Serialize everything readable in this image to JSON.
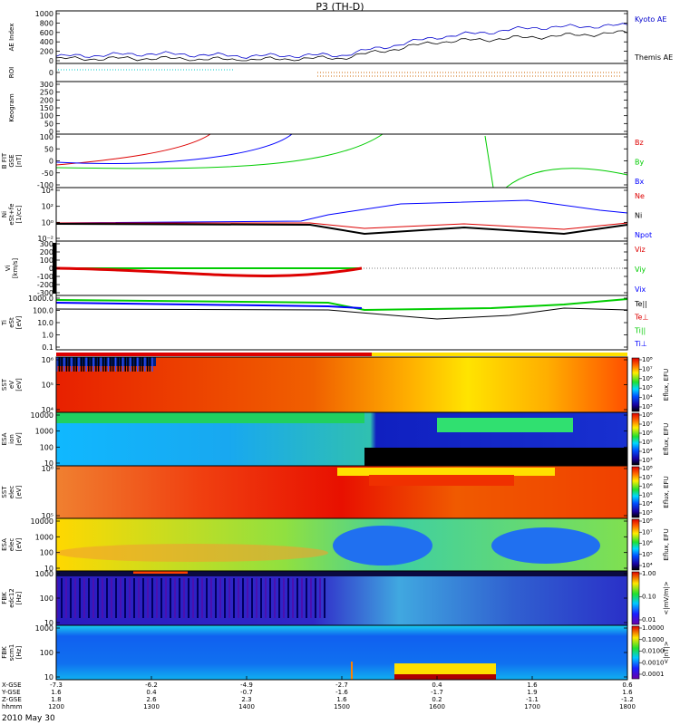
{
  "title": "P3 (TH-D)",
  "date_label": "2010 May 30",
  "colors": {
    "kyoto": "#0000cc",
    "themis": "#000000",
    "red": "#dd0000",
    "green": "#00cc00",
    "blue": "#0000ff",
    "black": "#000000",
    "roi_cyan": "#00cccc",
    "roi_orange": "#cc6600"
  },
  "x_axis": {
    "hhmm": [
      "1200",
      "1300",
      "1400",
      "1500",
      "1600",
      "1700",
      "1800"
    ],
    "rows": [
      {
        "label": "X-GSE",
        "values": [
          "-7.3",
          "-6.2",
          "-4.9",
          "-2.7",
          "0.4",
          "1.6",
          "0.6"
        ]
      },
      {
        "label": "Y-GSE",
        "values": [
          "1.6",
          "0.4",
          "-0.7",
          "-1.6",
          "-1.7",
          "1.9",
          "1.6"
        ]
      },
      {
        "label": "Z-GSE",
        "values": [
          "1.8",
          "2.6",
          "2.3",
          "1.6",
          "0.2",
          "-1.1",
          "-1.2"
        ]
      },
      {
        "label": "hhmm",
        "values": [
          "1200",
          "1300",
          "1400",
          "1500",
          "1600",
          "1700",
          "1800"
        ]
      }
    ]
  },
  "panels": [
    {
      "id": "ae",
      "ylabel": [
        "AE Index"
      ],
      "ticks": [
        "1000",
        "800",
        "600",
        "400",
        "200",
        "0"
      ],
      "legend": [
        {
          "text": "Kyoto AE",
          "color": "#0000cc"
        },
        {
          "text": "Themis AE",
          "color": "#000000"
        }
      ]
    },
    {
      "id": "roi",
      "ylabel": [
        "ROI"
      ],
      "ticks": [
        "0"
      ],
      "legend": []
    },
    {
      "id": "keogram",
      "ylabel": [
        "Keogram"
      ],
      "ticks": [
        "300",
        "250",
        "200",
        "150",
        "100",
        "50",
        "0"
      ],
      "legend": []
    },
    {
      "id": "bfit",
      "ylabel": [
        "B FIT",
        "GSE",
        "[nT]"
      ],
      "ticks": [
        "100",
        "50",
        "0",
        "-50",
        "-100"
      ],
      "legend": [
        {
          "text": "Bz",
          "color": "#dd0000"
        },
        {
          "text": "By",
          "color": "#00cc00"
        },
        {
          "text": "Bx",
          "color": "#0000ff"
        }
      ]
    },
    {
      "id": "ni",
      "ylabel": [
        "Ni",
        "eSt+fe",
        "[1/cc]"
      ],
      "ticks": [
        "10⁴",
        "10²",
        "10⁰",
        "10⁻²"
      ],
      "legend": [
        {
          "text": "Ne",
          "color": "#dd0000"
        },
        {
          "text": "Ni",
          "color": "#000000"
        },
        {
          "text": "Npot",
          "color": "#0000ff"
        }
      ]
    },
    {
      "id": "vi",
      "ylabel": [
        "Vi",
        "[km/s]"
      ],
      "ticks": [
        "300",
        "200",
        "100",
        "0",
        "-100",
        "-200",
        "-300"
      ],
      "legend": [
        {
          "text": "Viz",
          "color": "#dd0000"
        },
        {
          "text": "Viy",
          "color": "#00cc00"
        },
        {
          "text": "Vix",
          "color": "#0000ff"
        }
      ]
    },
    {
      "id": "ti",
      "ylabel": [
        "Ti",
        "eSt",
        "[eV]"
      ],
      "ticks": [
        "1000.0",
        "100.0",
        "10.0",
        "1.0",
        "0.1"
      ],
      "legend": [
        {
          "text": "Te||",
          "color": "#000000"
        },
        {
          "text": "Te⊥",
          "color": "#dd0000"
        },
        {
          "text": "Ti||",
          "color": "#00cc00"
        },
        {
          "text": "Ti⊥",
          "color": "#0000ff"
        }
      ]
    },
    {
      "id": "sst1",
      "ylabel": [
        "SST",
        "eV",
        "[eV]"
      ],
      "ticks": [
        "10⁶",
        "10⁵",
        "10⁴"
      ],
      "cbar_type": "eflux",
      "cbar": [
        "10⁸",
        "10⁷",
        "10⁶",
        "10⁵",
        "10⁴",
        "10³"
      ],
      "cbar_title": "Eflux, EFU"
    },
    {
      "id": "esa1",
      "ylabel": [
        "ESA",
        "ion",
        "[eV]"
      ],
      "ticks": [
        "10000",
        "1000",
        "100",
        "10"
      ],
      "cbar_type": "eflux",
      "cbar": [
        "10⁸",
        "10⁷",
        "10⁶",
        "10⁵",
        "10⁴",
        "10³"
      ],
      "cbar_title": "Eflux, EFU"
    },
    {
      "id": "sst2",
      "ylabel": [
        "SST",
        "elec",
        "[eV]"
      ],
      "ticks": [
        "10⁶",
        "10⁵"
      ],
      "cbar_type": "eflux",
      "cbar": [
        "10⁸",
        "10⁷",
        "10⁶",
        "10⁵",
        "10⁴",
        "10³"
      ],
      "cbar_title": "Eflux, EFU"
    },
    {
      "id": "esa2",
      "ylabel": [
        "ESA",
        "elec",
        "[eV]"
      ],
      "ticks": [
        "10000",
        "1000",
        "100",
        "10"
      ],
      "cbar_type": "eflux",
      "cbar": [
        "10⁸",
        "10⁷",
        "10⁶",
        "10⁵",
        "10⁴"
      ],
      "cbar_title": "Eflux, EFU"
    },
    {
      "id": "fbk1",
      "ylabel": [
        "FBK",
        "edc12",
        "[Hz]"
      ],
      "ticks": [
        "1000",
        "100",
        "10"
      ],
      "cbar_type": "rainbow",
      "cbar": [
        "1.00",
        "0.10",
        "0.01"
      ],
      "cbar_title": "<|mV/m|>"
    },
    {
      "id": "fbk2",
      "ylabel": [
        "FBK",
        "scm1",
        "[Hz]"
      ],
      "ticks": [
        "1000",
        "100",
        "10"
      ],
      "cbar_type": "rainbow",
      "cbar": [
        "1.0000",
        "0.1000",
        "0.0100",
        "0.0010",
        "0.0001"
      ],
      "cbar_title": "<|nT|>"
    }
  ],
  "chart_data": {
    "type": "line",
    "title": "P3 (TH-D)",
    "x": [
      "1200",
      "1300",
      "1400",
      "1500",
      "1600",
      "1700",
      "1800"
    ],
    "xlabel": "hhmm",
    "series": [
      {
        "name": "Kyoto AE",
        "values": [
          90,
          150,
          100,
          120,
          500,
          700,
          750
        ]
      },
      {
        "name": "Themis AE",
        "values": [
          40,
          50,
          20,
          60,
          400,
          500,
          600
        ]
      }
    ],
    "ylabel": "AE Index",
    "ylim": [
      0,
      1000
    ]
  }
}
